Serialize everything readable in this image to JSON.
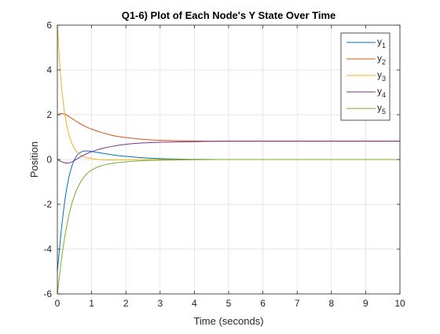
{
  "figure": {
    "background": "#ffffff"
  },
  "chart_data": {
    "type": "line",
    "title": "Q1-6) Plot of Each Node's Y State Over Time",
    "xlabel": "Time (seconds)",
    "ylabel": "Position",
    "xlim": [
      0,
      10
    ],
    "ylim": [
      -6,
      6
    ],
    "xticks": [
      0,
      1,
      2,
      3,
      4,
      5,
      6,
      7,
      8,
      9,
      10
    ],
    "yticks": [
      -6,
      -4,
      -2,
      0,
      2,
      4,
      6
    ],
    "grid": true,
    "legend_position": "top-right",
    "x": [
      0,
      0.1,
      0.2,
      0.3,
      0.4,
      0.5,
      0.6,
      0.7,
      0.8,
      0.9,
      1.0,
      1.2,
      1.4,
      1.6,
      1.8,
      2.0,
      2.5,
      3.0,
      3.5,
      4.0,
      4.5,
      5.0,
      6.0,
      7.0,
      8.0,
      9.0,
      10.0
    ],
    "series": [
      {
        "name": "y",
        "subscript": "1",
        "color": "#0072BD",
        "values": [
          -5.0,
          -3.38,
          -2.05,
          -1.07,
          -0.41,
          0.0,
          0.23,
          0.34,
          0.38,
          0.38,
          0.36,
          0.31,
          0.26,
          0.21,
          0.17,
          0.14,
          0.08,
          0.04,
          0.02,
          0.01,
          0.005,
          0.0,
          0.0,
          0.0,
          0.0,
          0.0,
          0.0
        ]
      },
      {
        "name": "y",
        "subscript": "2",
        "color": "#D95319",
        "values": [
          2.0,
          2.05,
          2.04,
          1.96,
          1.86,
          1.76,
          1.66,
          1.57,
          1.49,
          1.42,
          1.36,
          1.25,
          1.16,
          1.08,
          1.02,
          0.98,
          0.9,
          0.86,
          0.84,
          0.83,
          0.82,
          0.82,
          0.82,
          0.82,
          0.82,
          0.82,
          0.82
        ]
      },
      {
        "name": "y",
        "subscript": "3",
        "color": "#EDB120",
        "values": [
          6.0,
          3.64,
          2.21,
          1.34,
          0.81,
          0.49,
          0.3,
          0.18,
          0.11,
          0.07,
          0.04,
          0.0,
          -0.02,
          -0.02,
          -0.02,
          -0.01,
          0.0,
          0.0,
          0.0,
          0.0,
          0.0,
          0.0,
          0.0,
          0.0,
          0.0,
          0.0,
          0.0
        ]
      },
      {
        "name": "y",
        "subscript": "4",
        "color": "#7E2F8E",
        "values": [
          0.0,
          -0.08,
          -0.14,
          -0.16,
          -0.12,
          -0.04,
          0.05,
          0.14,
          0.22,
          0.29,
          0.35,
          0.45,
          0.53,
          0.59,
          0.64,
          0.68,
          0.74,
          0.77,
          0.79,
          0.8,
          0.81,
          0.82,
          0.82,
          0.82,
          0.82,
          0.82,
          0.82
        ]
      },
      {
        "name": "y",
        "subscript": "5",
        "color": "#77AC30",
        "values": [
          -6.0,
          -4.7,
          -3.6,
          -2.75,
          -2.1,
          -1.6,
          -1.23,
          -0.95,
          -0.74,
          -0.58,
          -0.47,
          -0.32,
          -0.23,
          -0.17,
          -0.13,
          -0.1,
          -0.05,
          -0.03,
          -0.02,
          -0.01,
          0.0,
          0.0,
          0.0,
          0.0,
          0.0,
          0.0,
          0.0
        ]
      }
    ]
  }
}
